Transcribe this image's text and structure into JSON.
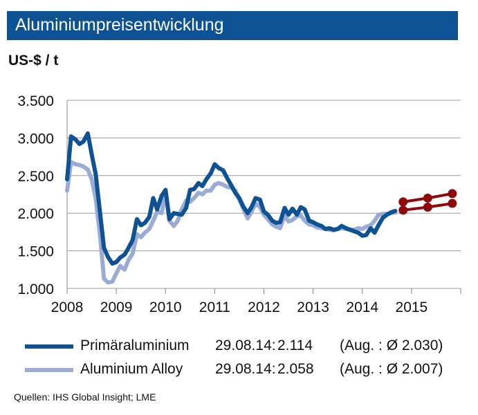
{
  "title": "Aluminiumpreisentwicklung",
  "unit": "US-$ / t",
  "source": "Quellen: IHS Global Insight; LME",
  "colors": {
    "title_bg": "#0e5294",
    "primary": "#0e5294",
    "alloy": "#9aacd6",
    "forecast": "#8b0a0a",
    "grid": "#9a9a9a"
  },
  "legend": [
    {
      "name": "Primäraluminium",
      "date": "29.08.14:",
      "value": "2.114",
      "avg": "(Aug. : Ø 2.030)",
      "color": "#0e5294"
    },
    {
      "name": "Aluminium Alloy",
      "date": "29.08.14:",
      "value": "2.058",
      "avg": "(Aug. : Ø 2.007)",
      "color": "#9aacd6"
    }
  ],
  "chart_data": {
    "type": "line",
    "title": "Aluminiumpreisentwicklung",
    "ylabel": "US-$ / t",
    "xlabel": "",
    "ylim": [
      1000,
      3500
    ],
    "xlim": [
      2008.0,
      2016.0
    ],
    "yticks": [
      1000,
      1500,
      2000,
      2500,
      3000,
      3500
    ],
    "ytick_labels": [
      "1.000",
      "1.500",
      "2.000",
      "2.500",
      "3.000",
      "3.500"
    ],
    "xtick_labels": [
      "2008",
      "2009",
      "2010",
      "2011",
      "2012",
      "2013",
      "2014",
      "2015"
    ],
    "grid": true,
    "series": [
      {
        "name": "Primäraluminium",
        "color": "#0e5294",
        "x": [
          2008.0,
          2008.08,
          2008.17,
          2008.25,
          2008.33,
          2008.42,
          2008.5,
          2008.58,
          2008.67,
          2008.75,
          2008.83,
          2008.92,
          2009.0,
          2009.08,
          2009.17,
          2009.25,
          2009.33,
          2009.42,
          2009.5,
          2009.58,
          2009.67,
          2009.75,
          2009.83,
          2009.92,
          2010.0,
          2010.08,
          2010.17,
          2010.25,
          2010.33,
          2010.42,
          2010.5,
          2010.58,
          2010.67,
          2010.75,
          2010.83,
          2010.92,
          2011.0,
          2011.08,
          2011.17,
          2011.25,
          2011.33,
          2011.42,
          2011.5,
          2011.58,
          2011.67,
          2011.75,
          2011.83,
          2011.92,
          2012.0,
          2012.08,
          2012.17,
          2012.25,
          2012.33,
          2012.42,
          2012.5,
          2012.58,
          2012.67,
          2012.75,
          2012.83,
          2012.92,
          2013.0,
          2013.08,
          2013.17,
          2013.25,
          2013.33,
          2013.42,
          2013.5,
          2013.58,
          2013.67,
          2013.75,
          2013.83,
          2013.92,
          2014.0,
          2014.08,
          2014.17,
          2014.25,
          2014.33,
          2014.42,
          2014.5,
          2014.58,
          2014.67
        ],
        "y": [
          2450,
          3020,
          2980,
          2920,
          2950,
          3060,
          2780,
          2520,
          2000,
          1540,
          1420,
          1330,
          1350,
          1410,
          1450,
          1540,
          1640,
          1920,
          1840,
          1870,
          1950,
          2200,
          2050,
          2230,
          2310,
          1920,
          2000,
          1990,
          1980,
          2070,
          2310,
          2320,
          2400,
          2360,
          2450,
          2530,
          2650,
          2600,
          2570,
          2470,
          2380,
          2270,
          2200,
          2090,
          2000,
          2080,
          2200,
          2180,
          2020,
          1980,
          1900,
          1870,
          1880,
          2070,
          1980,
          2060,
          1980,
          2080,
          2050,
          1900,
          1880,
          1850,
          1830,
          1790,
          1800,
          1780,
          1790,
          1830,
          1800,
          1780,
          1760,
          1740,
          1700,
          1710,
          1800,
          1740,
          1840,
          1940,
          1980,
          2010,
          2030
        ]
      },
      {
        "name": "Aluminium Alloy",
        "color": "#9aacd6",
        "x": [
          2008.0,
          2008.08,
          2008.17,
          2008.25,
          2008.33,
          2008.42,
          2008.5,
          2008.58,
          2008.67,
          2008.75,
          2008.83,
          2008.92,
          2009.0,
          2009.08,
          2009.17,
          2009.25,
          2009.33,
          2009.42,
          2009.5,
          2009.58,
          2009.67,
          2009.75,
          2009.83,
          2009.92,
          2010.0,
          2010.08,
          2010.17,
          2010.25,
          2010.33,
          2010.42,
          2010.5,
          2010.58,
          2010.67,
          2010.75,
          2010.83,
          2010.92,
          2011.0,
          2011.08,
          2011.17,
          2011.25,
          2011.33,
          2011.42,
          2011.5,
          2011.58,
          2011.67,
          2011.75,
          2011.83,
          2011.92,
          2012.0,
          2012.08,
          2012.17,
          2012.25,
          2012.33,
          2012.42,
          2012.5,
          2012.58,
          2012.67,
          2012.75,
          2012.83,
          2012.92,
          2013.0,
          2013.08,
          2013.17,
          2013.25,
          2013.33,
          2013.42,
          2013.5,
          2013.58,
          2013.67,
          2013.75,
          2013.83,
          2013.92,
          2014.0,
          2014.08,
          2014.17,
          2014.25,
          2014.33,
          2014.42,
          2014.5,
          2014.58,
          2014.67
        ],
        "y": [
          2300,
          2680,
          2650,
          2640,
          2620,
          2580,
          2450,
          2200,
          1700,
          1130,
          1080,
          1090,
          1200,
          1300,
          1250,
          1380,
          1460,
          1720,
          1680,
          1740,
          1790,
          1900,
          2020,
          2000,
          2260,
          1900,
          1830,
          1900,
          2050,
          2170,
          2150,
          2200,
          2270,
          2250,
          2300,
          2300,
          2380,
          2400,
          2380,
          2350,
          2340,
          2300,
          2180,
          2060,
          1930,
          2020,
          2130,
          2080,
          1980,
          1920,
          1850,
          1820,
          1800,
          1970,
          1890,
          1910,
          1960,
          1970,
          1900,
          1850,
          1840,
          1810,
          1800,
          1790,
          1780,
          1770,
          1790,
          1800,
          1790,
          1780,
          1780,
          1800,
          1790,
          1820,
          1840,
          1900,
          1980,
          1990,
          1990,
          2000,
          2010
        ]
      },
      {
        "name": "",
        "color": "#8b0a0a",
        "x": [
          2014.83,
          2015.33,
          2015.83
        ],
        "y": [
          2150,
          2200,
          2260
        ]
      },
      {
        "name": "",
        "color": "#8b0a0a",
        "x": [
          2014.83,
          2015.33,
          2015.83
        ],
        "y": [
          2040,
          2080,
          2130
        ]
      }
    ]
  }
}
